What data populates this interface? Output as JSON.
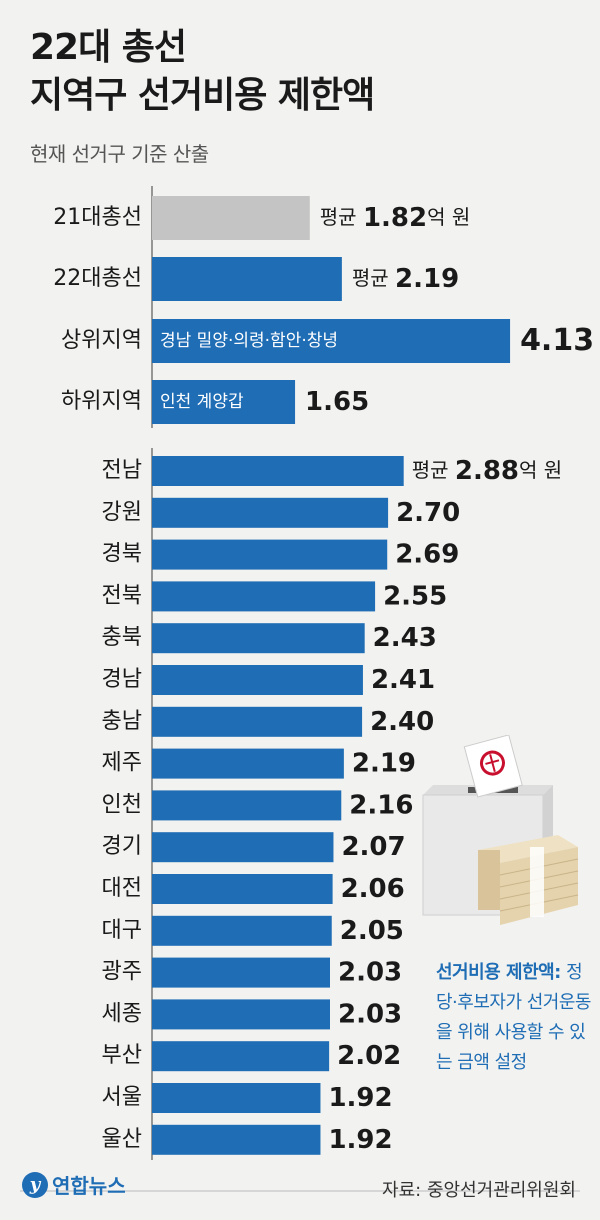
{
  "header": {
    "title_line1": "22대 총선",
    "title_line2": "지역구 선거비용 제한액",
    "subtitle": "현재 선거구 기준 산출"
  },
  "colors": {
    "primary": "#1f6db5",
    "baseline_bar": "#c4c4c4"
  },
  "chart_data": [
    {
      "type": "bar",
      "orientation": "horizontal",
      "unit": "억 원",
      "categories": [
        "21대총선",
        "22대총선",
        "상위지역",
        "하위지역"
      ],
      "values": [
        1.82,
        2.19,
        4.13,
        1.65
      ],
      "value_labels": [
        "1.82억 원",
        "2.19",
        "4.13",
        "1.65"
      ],
      "value_prefixes": [
        "평균",
        "평균",
        "",
        ""
      ],
      "bar_labels": [
        "",
        "",
        "경남 밀양·의령·함안·창녕",
        "인천 계양갑"
      ],
      "bar_colors": [
        "#c4c4c4",
        "#1f6db5",
        "#1f6db5",
        "#1f6db5"
      ]
    },
    {
      "type": "bar",
      "orientation": "horizontal",
      "unit": "억 원",
      "categories": [
        "전남",
        "강원",
        "경북",
        "전북",
        "충북",
        "경남",
        "충남",
        "제주",
        "인천",
        "경기",
        "대전",
        "대구",
        "광주",
        "세종",
        "부산",
        "서울",
        "울산"
      ],
      "values": [
        2.88,
        2.7,
        2.69,
        2.55,
        2.43,
        2.41,
        2.4,
        2.19,
        2.16,
        2.07,
        2.06,
        2.05,
        2.03,
        2.03,
        2.02,
        1.92,
        1.92
      ],
      "value_labels": [
        "2.88억 원",
        "2.70",
        "2.69",
        "2.55",
        "2.43",
        "2.41",
        "2.40",
        "2.19",
        "2.16",
        "2.07",
        "2.06",
        "2.05",
        "2.03",
        "2.03",
        "2.02",
        "1.92",
        "1.92"
      ],
      "value_prefix_first": "평균"
    }
  ],
  "note": {
    "term": "선거비용 제한액:",
    "text": "정당·후보자가 선거운동을 위해 사용할 수 있는 금액 설정"
  },
  "footer": {
    "logo": "연합뉴스",
    "source": "자료: 중앙선거관리위원회"
  }
}
